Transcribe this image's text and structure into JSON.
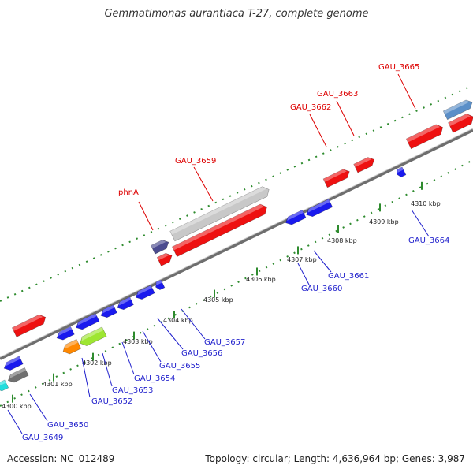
{
  "title": "Gemmatimonas aurantiaca T-27, complete genome",
  "footer": {
    "accession": "Accession: NC_012489",
    "topology": "Topology: circular; Length: 4,636,964 bp; Genes: 3,987"
  },
  "colors": {
    "backbone": "#7a7a7a",
    "tick": "#2e8b2e",
    "forward_label": "#dd0000",
    "reverse_label": "#1f1fcc"
  },
  "ticks": [
    "4300 kbp",
    "4301 kbp",
    "4302 kbp",
    "4303 kbp",
    "4304 kbp",
    "4305 kbp",
    "4306 kbp",
    "4307 kbp",
    "4308 kbp",
    "4309 kbp",
    "4310 kbp"
  ],
  "forward_genes": [
    "phnA",
    "GAU_3659",
    "GAU_3662",
    "GAU_3663",
    "GAU_3665"
  ],
  "reverse_genes": [
    "GAU_3649",
    "GAU_3650",
    "GAU_3652",
    "GAU_3653",
    "GAU_3654",
    "GAU_3655",
    "GAU_3656",
    "GAU_3657",
    "GAU_3660",
    "GAU_3661",
    "GAU_3664"
  ]
}
